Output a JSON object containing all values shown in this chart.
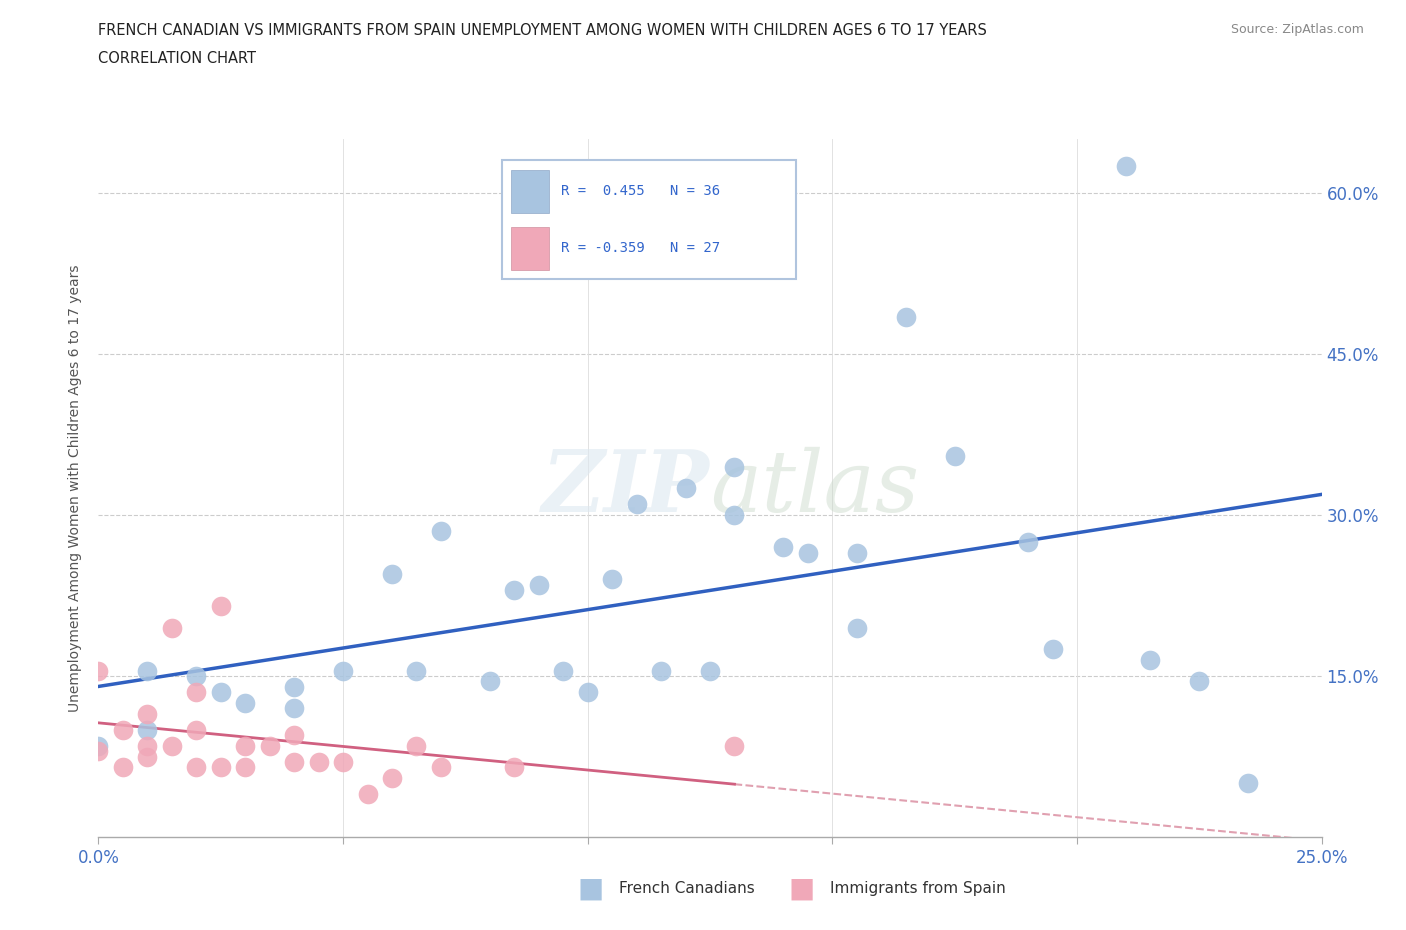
{
  "title_line1": "FRENCH CANADIAN VS IMMIGRANTS FROM SPAIN UNEMPLOYMENT AMONG WOMEN WITH CHILDREN AGES 6 TO 17 YEARS",
  "title_line2": "CORRELATION CHART",
  "source": "Source: ZipAtlas.com",
  "ylabel": "Unemployment Among Women with Children Ages 6 to 17 years",
  "xlim": [
    0.0,
    0.25
  ],
  "ylim": [
    0.0,
    0.65
  ],
  "blue_color": "#a8c4e0",
  "pink_color": "#f0a8b8",
  "blue_line_color": "#3060c0",
  "pink_line_color": "#d06080",
  "pink_line_dashed_color": "#e0a0b0",
  "watermark_color": "#c8d8e8",
  "french_canadians_x": [
    0.0,
    0.01,
    0.01,
    0.02,
    0.025,
    0.03,
    0.04,
    0.04,
    0.05,
    0.06,
    0.065,
    0.07,
    0.08,
    0.085,
    0.09,
    0.095,
    0.1,
    0.105,
    0.11,
    0.115,
    0.12,
    0.125,
    0.13,
    0.14,
    0.155,
    0.165,
    0.175,
    0.19,
    0.195,
    0.21,
    0.215,
    0.225,
    0.13,
    0.145,
    0.155,
    0.235
  ],
  "french_canadians_y": [
    0.085,
    0.1,
    0.155,
    0.15,
    0.135,
    0.125,
    0.12,
    0.14,
    0.155,
    0.245,
    0.155,
    0.285,
    0.145,
    0.23,
    0.235,
    0.155,
    0.135,
    0.24,
    0.31,
    0.155,
    0.325,
    0.155,
    0.3,
    0.27,
    0.265,
    0.485,
    0.355,
    0.275,
    0.175,
    0.625,
    0.165,
    0.145,
    0.345,
    0.265,
    0.195,
    0.05
  ],
  "immigrants_spain_x": [
    0.0,
    0.0,
    0.005,
    0.005,
    0.01,
    0.01,
    0.01,
    0.015,
    0.015,
    0.02,
    0.02,
    0.02,
    0.025,
    0.025,
    0.03,
    0.03,
    0.035,
    0.04,
    0.04,
    0.045,
    0.05,
    0.055,
    0.06,
    0.065,
    0.07,
    0.085,
    0.13
  ],
  "immigrants_spain_y": [
    0.08,
    0.155,
    0.065,
    0.1,
    0.075,
    0.085,
    0.115,
    0.085,
    0.195,
    0.1,
    0.065,
    0.135,
    0.215,
    0.065,
    0.065,
    0.085,
    0.085,
    0.095,
    0.07,
    0.07,
    0.07,
    0.04,
    0.055,
    0.085,
    0.065,
    0.065,
    0.085
  ]
}
